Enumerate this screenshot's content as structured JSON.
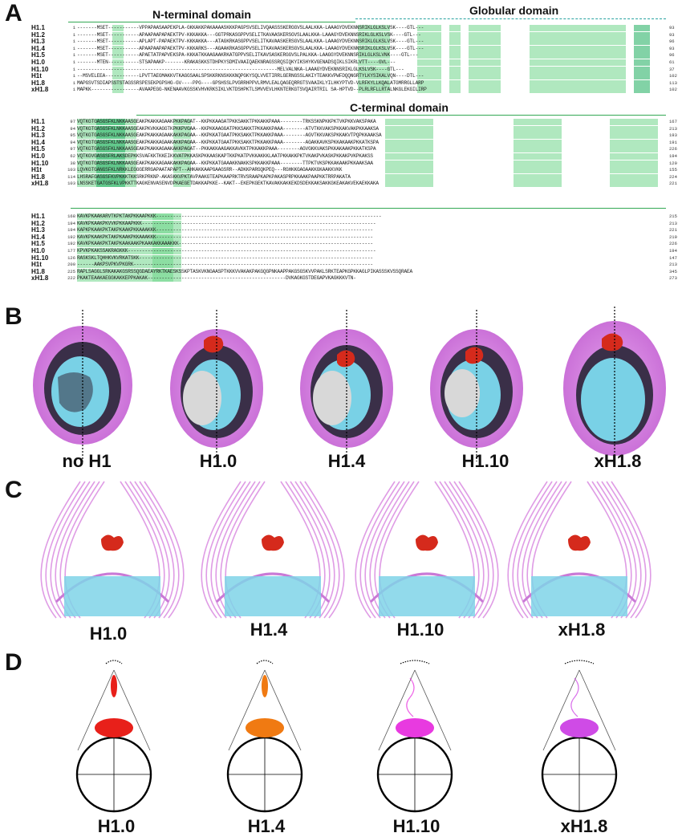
{
  "panels": {
    "a": "A",
    "b": "B",
    "c": "C",
    "d": "D"
  },
  "domains": {
    "n_terminal": "N-terminal domain",
    "globular": "Globular domain",
    "c_terminal": "C-terminal domain"
  },
  "alignment_block_1": [
    {
      "name": "H1.1",
      "start": "1",
      "seq": "-------MSET-----------VPPAPAASAAPEKPLA-GKKAKKPAKAAAASKKKPAGPSVSELIVQAASSSKERGGVSLAALKKA-LAAAGYDVEKNNSRIKLGLKSLVSK----GTL---",
      "end": "93"
    },
    {
      "name": "H1.2",
      "start": "1",
      "seq": "-------MSET-----------APAAPAAPAPAEKTPV-KKKAKKA---GGTPRKASGPPVSELITKAVAASKERSGVSLAALKKA-LAAAGYDVEKNNSRIKLGLKSLVSK----GTL---",
      "end": "93"
    },
    {
      "name": "H1.3",
      "start": "1",
      "seq": "-------MSET-----------APLAPT-PAPAEKTPV-KKKAKKA---ATAGKRKASGPPVSELITKAVAASKERSGVSLAALKKA-LAAAGYDVEKNNSRIKLGLKSLVSK----GTL---",
      "end": "96"
    },
    {
      "name": "H1.4",
      "start": "1",
      "seq": "-------MSET-----------APAAPAAPAPAEKTPV-KKKARKS---AGAAKRKASGPPVSELITKAVAASKERSGVSLAALKKA-LAAAGYDVEKNNSRIKLGLKSLVSK----GTL---",
      "end": "93"
    },
    {
      "name": "H1.5",
      "start": "1",
      "seq": "-------MSET-----------APAETATPAPVEKSPA-KKKATKKAAGAAKRKATGPPVSELITKAVSASKERGGVSLPALKKA-LAAGGYDVEKNNSRIKLGLKSLVNK----GTL---",
      "end": "96"
    },
    {
      "name": "H1.0",
      "start": "1",
      "seq": "-------MTEN-----------STSAPAAKP-------KRAKASKKSTDHPKYSDMIVAAIQAEKNRAGSSRQSIQKYIKSHYKVGENADSQIKLSIKRLVTT----GVL---",
      "end": "61"
    },
    {
      "name": "H1.10",
      "start": "1",
      "seq": "-----------------------------------------------------------------------MELVALNKA-LAAAGYDVEKNNSRIKLGLKSLVSK----GTL---",
      "end": "37"
    },
    {
      "name": "H1t",
      "start": "1",
      "seq": "--MSVELEEA------------LPVTTAEGMAKKVTKAGGSAALSPSKKRKNSKKKNQPGKYSQLVVETIRRLGERNGSSLAKIYTEAKKVPWFDQQNGRTYLKYSIKALVQN----DTL---",
      "end": "102"
    },
    {
      "name": "H1.8",
      "start": "1",
      "seq": "MAPGSVTSDIAPSSTSTAGSSRSPESEKPGPSHG-GV----PPG----GPSHSSLPVGRRHPPVLRMVLEALQAGEQRRGTSVAAIKLYILHKYPTVD-VLRFKYLLKQALATGMRRGLLARP",
      "end": "113"
    },
    {
      "name": "xH1.8",
      "start": "1",
      "seq": "MAPKK-----------------AVAAPEGG-NKENAAVKGSSKVHVKRKSIKLVKTDSHPKTLSMVVEVLHKNTERKGTSVQAIRTRIL SA-HPTVD--PLRLRFLLRTALNKGLEKGILIRP",
      "end": "102"
    }
  ],
  "alignment_block_2": [
    {
      "name": "H1.1",
      "start": "97",
      "seq": "VQTKGTGASGSFKLNKKAASGEAKPKAKKAGAAKPKKPAGAT--KKPKKAAGATPKKSAKKTPKKAKKPAAA--------TRKSSKNPKKPKTVKPKKVAKSPAKA",
      "end": "167"
    },
    {
      "name": "H1.2",
      "start": "94",
      "seq": "VQTKGTGASGSFKLNKKAASGEAKPKVKKAGGTKPKKPVGAA--KKPKKAAGGATPKKSAKKTPKKAKKPAAA--------ATVTKKVAKSPKKAKVAKPKKAAKSA",
      "end": "213"
    },
    {
      "name": "H1.3",
      "start": "95",
      "seq": "VQTKGTGASGSFKLNKKAASGEAKPKAKKAGAAKAKKPAGAA--KKPKKATGAATPKKSAKKTPKKAKKPAAA--------AGVTKKVAKSPKKAKVTPQPKKAAKSA",
      "end": "193"
    },
    {
      "name": "H1.4",
      "start": "94",
      "seq": "VQTKGTGASGSFKLNKKAASGEAKPKAKKAGAAKAKKPAGAA--KKPKKATGAATPKKSAKKTPKKAKKPAAA--------AGAKKAVKSPKKAKAAKPKKATKSPA",
      "end": "191"
    },
    {
      "name": "H1.5",
      "start": "97",
      "seq": "VQTKGTGASGSFKLNKKAASGEAKPKAKKAGAAKAKKPAGAT--PKKAKKAAGAKKAVKKTPKKAKKPAAA--------AGVGKKVAKSPKKAKAAKPKKATKSPA",
      "end": "226"
    },
    {
      "name": "H1.0",
      "start": "62",
      "seq": "VQTKGVGASGSFRLAKSDEPKKSVAFKKTKKEIKKVATPKKASKPKKAASKAPTKKPKATPVKKAKKKLAATPKKAKKPKTVKAKPVKASKPKKAKPVKPKAKSS",
      "end": "194"
    },
    {
      "name": "H1.10",
      "start": "38",
      "seq": "VQTKGTGASGSFKLNKKAASGEAKPKAKKAGAAKAKKPAGAA--KKPKKATGAAAKKNAKKSPKKAKKPAAA--------TTPKTVKSPKKAKAAKPKKAAKSAA",
      "end": "120"
    },
    {
      "name": "H1t",
      "start": "103",
      "seq": "LQVKGTGANGSFKLNRKKLEGGGERRGAPAATAPAPT--AHKAKKAAPGAAGSRR--ADKKPARGQKPEQ---RGHKKGAGAAKKGKAAKKVKK",
      "end": "155"
    },
    {
      "name": "H1.8",
      "start": "114",
      "seq": "LHSRAFGASGSFKVPKKKTKKSRKPRKNP-AKASKKVPKTAVPAAKGTEAPKAAPRKTRVSRAAPKAPKPAKASPRPKKAAKPAAPKKTRRPAKATA",
      "end": "224"
    },
    {
      "name": "xH1.8",
      "start": "103",
      "seq": "LNSSKETGATGSFKLVPKKTTKAGKENVASENVDPKAEGETDAKKAPKKE--KAKT--EKEPKGEKTKAVAKKAKKEKDSDEKKAKSAKKGKEAKAKVEKAEKKAKA",
      "end": "221"
    }
  ],
  "alignment_block_3": [
    {
      "name": "H1.1",
      "start": "168",
      "seq": "KAVKPKAAKARVTKPKTAKPKKAAPKKK--------------------------------------------------------------------------------",
      "end": "215"
    },
    {
      "name": "H1.2",
      "start": "194",
      "seq": "KAVKPKAAKPKVVKPKKAAPKKK-----------------------------------------------------------------------------------",
      "end": "213"
    },
    {
      "name": "H1.3",
      "start": "194",
      "seq": "KAPKPKAAKPKTAKPKAAKPKKAAAKKK-----------------------------------------------------------------------------",
      "end": "221"
    },
    {
      "name": "H1.4",
      "start": "192",
      "seq": "KAVKPKAAKPKTAKPKAAKPKKAAAKKK-----------------------------------------------------------------------------",
      "end": "219"
    },
    {
      "name": "H1.5",
      "start": "192",
      "seq": "KAVKPKAAKPKTAKPKAAKAAKPKAAKAKKAAAKKK---------------------------------------------------------------------",
      "end": "226"
    },
    {
      "name": "H1.0",
      "start": "177",
      "seq": "KPVKPKAKSSAKRAGKKK----------------------------------------------------------------------------------------",
      "end": "194"
    },
    {
      "name": "H1.10",
      "start": "126",
      "seq": "RASKSKLTQHHKVKVRKATSKK-----------------------------------------------------------------------------------",
      "end": "147"
    },
    {
      "name": "H1t",
      "start": "200",
      "seq": "------AAKPSVPKVPKGRK-------------------------------------------------------------------------------------",
      "end": "213"
    },
    {
      "name": "H1.8",
      "start": "225",
      "seq": "RAPLSAGGLSRKAKAKGSRSSQGDAEAYRKTKAESKSSKPTASKVKNGAASPTKKKVVAKAKPAKGQGPNKAAPPAKGSGSKVVPAKLSRKTEAPKGPKKAGLPIKASSSKVSSQRAEA",
      "end": "345"
    },
    {
      "name": "xH1.8",
      "start": "222",
      "seq": "PKAKTEAAKAEGGKAKKEPPKAKAK-------------------------------------------------DVKAGKGSTDEGAPVKAGKKKVTN-",
      "end": "273"
    }
  ],
  "conditions_b": [
    "no H1",
    "H1.0",
    "H1.4",
    "H1.10",
    "xH1.8"
  ],
  "conditions_c": [
    "H1.0",
    "H1.4",
    "H1.10",
    "xH1.8"
  ],
  "conditions_d": [
    "H1.0",
    "H1.4",
    "H1.10",
    "xH1.8"
  ],
  "colors": {
    "alignment_highlight": "#6fd58a",
    "alignment_highlight_dark": "#2fb46a",
    "domain_line": "#33a854",
    "linker_histone": "#d52a1c",
    "dna_density": "#d98be0",
    "histone_core": "#7fd4e8",
    "h1_0_ellipse": "#e8201a",
    "h1_4_ellipse": "#f07a12",
    "h1_10_ellipse": "#e83ae0",
    "xh1_8_ellipse": "#cf4be6"
  }
}
